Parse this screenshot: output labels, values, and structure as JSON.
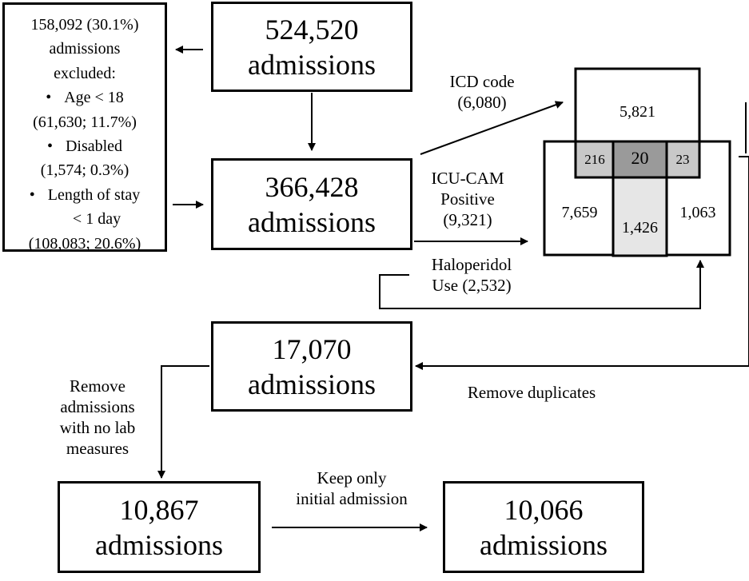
{
  "exclusion": {
    "header": [
      "158,092 (30.1%)",
      "admissions",
      "excluded:"
    ],
    "items": [
      {
        "label": "Age < 18",
        "detail": "(61,630; 11.7%)"
      },
      {
        "label": "Disabled",
        "detail": "(1,574; 0.3%)"
      },
      {
        "label": "Length of stay",
        "label2": "< 1 day",
        "detail": "(108,083; 20.6%)"
      }
    ]
  },
  "boxes": {
    "initial": {
      "count": "524,520",
      "unit": "admissions"
    },
    "after_exclusion": {
      "count": "366,428",
      "unit": "admissions"
    },
    "deduplicated": {
      "count": "17,070",
      "unit": "admissions"
    },
    "with_labs": {
      "count": "10,867",
      "unit": "admissions"
    },
    "final": {
      "count": "10,066",
      "unit": "admissions"
    }
  },
  "criteria": {
    "icd": [
      "ICD code",
      "(6,080)"
    ],
    "icu_cam": [
      "ICU-CAM",
      "Positive",
      "(9,321)"
    ],
    "haloperidol": [
      "Haloperidol",
      "Use (2,532)"
    ]
  },
  "venn": {
    "icd_only": "5,821",
    "icd_cam": "216",
    "all_three": "20",
    "icd_halo": "23",
    "cam_only": "7,659",
    "cam_halo": "1,426",
    "halo_only": "1,063"
  },
  "steps": {
    "remove_duplicates": "Remove duplicates",
    "remove_no_lab": [
      "Remove",
      "admissions",
      "with no lab",
      "measures"
    ],
    "keep_initial": [
      "Keep only",
      "initial admission"
    ]
  }
}
